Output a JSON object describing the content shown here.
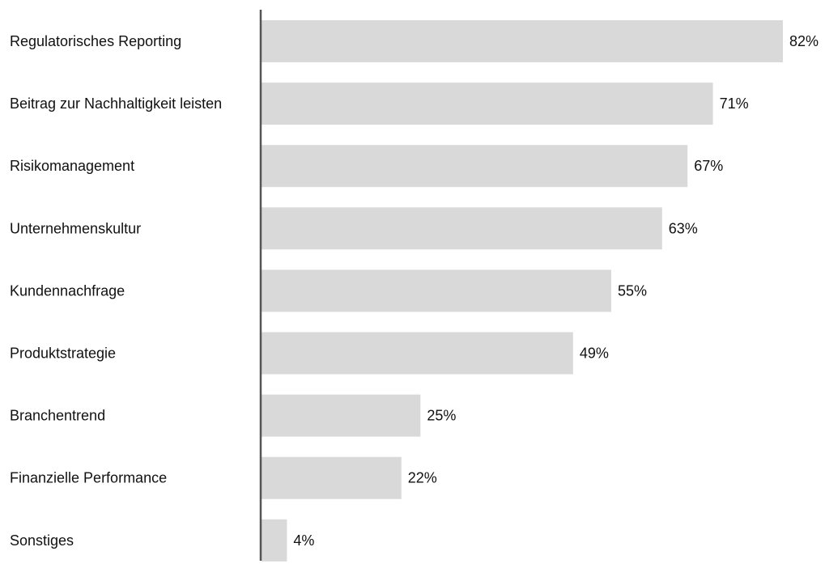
{
  "chart_data": {
    "type": "bar",
    "orientation": "horizontal",
    "categories": [
      "Regulatorisches Reporting",
      "Beitrag zur Nachhaltigkeit leisten",
      "Risikomanagement",
      "Unternehmenskultur",
      "Kundennachfrage",
      "Produktstrategie",
      "Branchentrend",
      "Finanzielle Performance",
      "Sonstiges"
    ],
    "values": [
      82,
      71,
      67,
      63,
      55,
      49,
      25,
      22,
      4
    ],
    "value_labels": [
      "82%",
      "71%",
      "67%",
      "63%",
      "55%",
      "49%",
      "25%",
      "22%",
      "4%"
    ],
    "unit": "%",
    "xlim": [
      0,
      82
    ],
    "grid": false,
    "legend": "none",
    "colors": {
      "bar": "#d9d9d9",
      "axis": "#555555",
      "text": "#111111"
    }
  }
}
